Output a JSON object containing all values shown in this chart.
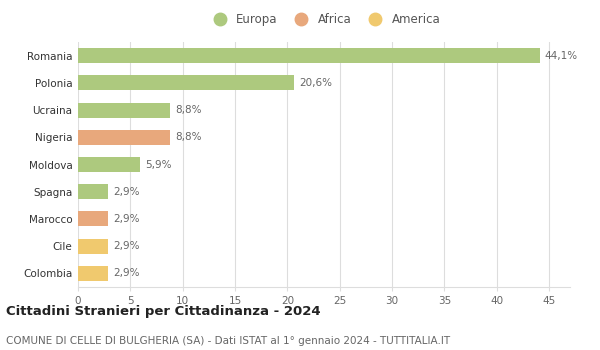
{
  "categories": [
    "Romania",
    "Polonia",
    "Ucraina",
    "Nigeria",
    "Moldova",
    "Spagna",
    "Marocco",
    "Cile",
    "Colombia"
  ],
  "values": [
    44.1,
    20.6,
    8.8,
    8.8,
    5.9,
    2.9,
    2.9,
    2.9,
    2.9
  ],
  "labels": [
    "44,1%",
    "20,6%",
    "8,8%",
    "8,8%",
    "5,9%",
    "2,9%",
    "2,9%",
    "2,9%",
    "2,9%"
  ],
  "colors": [
    "#adc97e",
    "#adc97e",
    "#adc97e",
    "#e8a87c",
    "#adc97e",
    "#adc97e",
    "#e8a87c",
    "#f0c96e",
    "#f0c96e"
  ],
  "legend": [
    {
      "label": "Europa",
      "color": "#adc97e"
    },
    {
      "label": "Africa",
      "color": "#e8a87c"
    },
    {
      "label": "America",
      "color": "#f0c96e"
    }
  ],
  "xlim": [
    0,
    47
  ],
  "xticks": [
    0,
    5,
    10,
    15,
    20,
    25,
    30,
    35,
    40,
    45
  ],
  "title": "Cittadini Stranieri per Cittadinanza - 2024",
  "subtitle": "COMUNE DI CELLE DI BULGHERIA (SA) - Dati ISTAT al 1° gennaio 2024 - TUTTITALIA.IT",
  "background_color": "#ffffff",
  "grid_color": "#dddddd",
  "bar_height": 0.55,
  "title_fontsize": 9.5,
  "subtitle_fontsize": 7.5,
  "label_fontsize": 7.5,
  "tick_fontsize": 7.5,
  "legend_fontsize": 8.5
}
